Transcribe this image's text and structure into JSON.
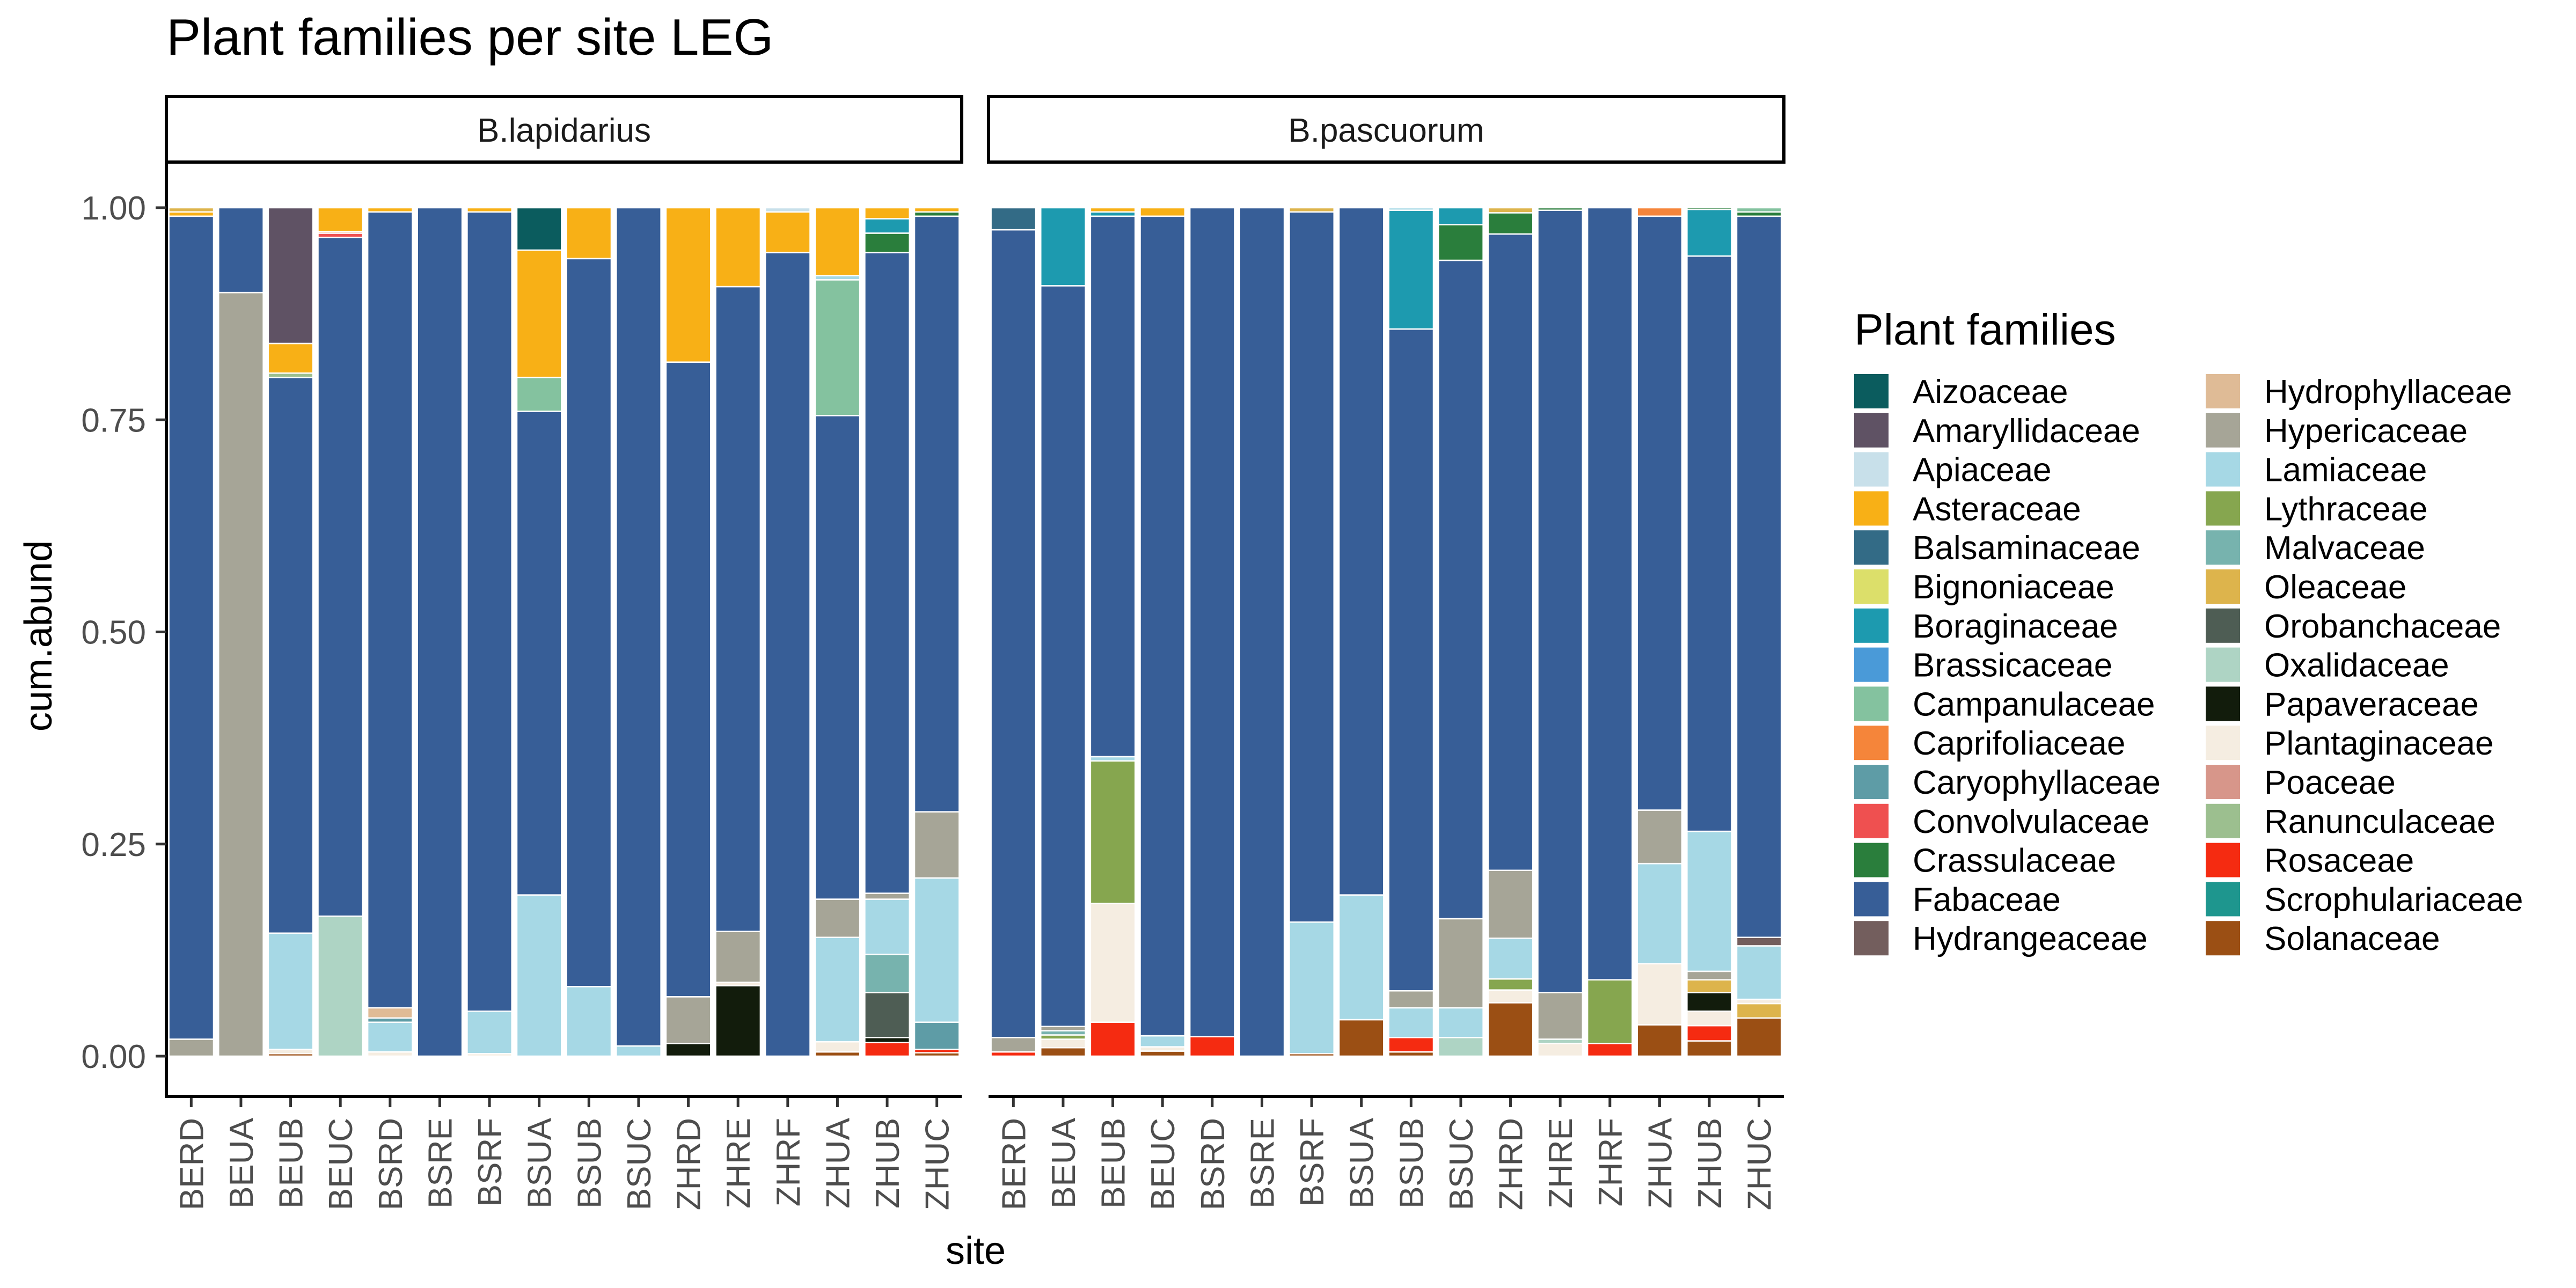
{
  "chart_data": {
    "type": "bar",
    "title": "Plant families per site LEG",
    "xlabel": "site",
    "ylabel": "cum.abund",
    "ylim": [
      0,
      1.05
    ],
    "yticks": [
      0,
      0.25,
      0.5,
      0.75,
      1.0
    ],
    "ytick_labels": [
      "0.00",
      "0.25",
      "0.50",
      "0.75",
      "1.00"
    ],
    "legend_title": "Plant families",
    "legend_position": "right",
    "categories": [
      "BERD",
      "BEUA",
      "BEUB",
      "BEUC",
      "BSRD",
      "BSRE",
      "BSRF",
      "BSUA",
      "BSUB",
      "BSUC",
      "ZHRD",
      "ZHRE",
      "ZHRF",
      "ZHUA",
      "ZHUB",
      "ZHUC"
    ],
    "families": [
      {
        "name": "Aizoaceae",
        "color": "#0B5C5E"
      },
      {
        "name": "Amaryllidaceae",
        "color": "#5F5264"
      },
      {
        "name": "Apiaceae",
        "color": "#C8E0EA"
      },
      {
        "name": "Asteraceae",
        "color": "#F8B016"
      },
      {
        "name": "Balsaminaceae",
        "color": "#336B86"
      },
      {
        "name": "Bignoniaceae",
        "color": "#DCDF6A"
      },
      {
        "name": "Boraginaceae",
        "color": "#1D9AAF"
      },
      {
        "name": "Brassicaceae",
        "color": "#4A9AD8"
      },
      {
        "name": "Campanulaceae",
        "color": "#84C29F"
      },
      {
        "name": "Caprifoliaceae",
        "color": "#F5853A"
      },
      {
        "name": "Caryophyllaceae",
        "color": "#5E9CA6"
      },
      {
        "name": "Convolvulaceae",
        "color": "#EF5050"
      },
      {
        "name": "Crassulaceae",
        "color": "#2A7E3C"
      },
      {
        "name": "Fabaceae",
        "color": "#375E97"
      },
      {
        "name": "Hydrangeaceae",
        "color": "#735E5D"
      },
      {
        "name": "Hydrophyllaceae",
        "color": "#DFBB96"
      },
      {
        "name": "Hypericaceae",
        "color": "#A6A597"
      },
      {
        "name": "Lamiaceae",
        "color": "#A6D8E5"
      },
      {
        "name": "Lythraceae",
        "color": "#86A64F"
      },
      {
        "name": "Malvaceae",
        "color": "#77B3AE"
      },
      {
        "name": "Oleaceae",
        "color": "#DDB44C"
      },
      {
        "name": "Orobanchaceae",
        "color": "#4E5D54"
      },
      {
        "name": "Oxalidaceae",
        "color": "#AED4C4"
      },
      {
        "name": "Papaveraceae",
        "color": "#121C0C"
      },
      {
        "name": "Plantaginaceae",
        "color": "#F5EDE1"
      },
      {
        "name": "Poaceae",
        "color": "#D7968A"
      },
      {
        "name": "Ranunculaceae",
        "color": "#9CBF8F"
      },
      {
        "name": "Rosaceae",
        "color": "#F52B11"
      },
      {
        "name": "Scrophulariaceae",
        "color": "#1E968E"
      },
      {
        "name": "Solanaceae",
        "color": "#9B4F14"
      }
    ],
    "panels": [
      {
        "label": "B.lapidarius",
        "bars": [
          {
            "site": "BERD",
            "segments": [
              [
                "Hypericaceae",
                0.02
              ],
              [
                "Fabaceae",
                0.97
              ],
              [
                "Asteraceae",
                0.005
              ],
              [
                "Oleaceae",
                0.005
              ]
            ]
          },
          {
            "site": "BEUA",
            "segments": [
              [
                "Hypericaceae",
                0.9
              ],
              [
                "Fabaceae",
                0.1
              ]
            ]
          },
          {
            "site": "BEUB",
            "segments": [
              [
                "Solanaceae",
                0.003
              ],
              [
                "Plantaginaceae",
                0.005
              ],
              [
                "Lamiaceae",
                0.137
              ],
              [
                "Fabaceae",
                0.655
              ],
              [
                "Ranunculaceae",
                0.005
              ],
              [
                "Asteraceae",
                0.035
              ],
              [
                "Amaryllidaceae",
                0.16
              ]
            ]
          },
          {
            "site": "BEUC",
            "segments": [
              [
                "Oxalidaceae",
                0.165
              ],
              [
                "Fabaceae",
                0.8
              ],
              [
                "Convolvulaceae",
                0.005
              ],
              [
                "Caprifoliaceae",
                0.002
              ],
              [
                "Asteraceae",
                0.028
              ]
            ]
          },
          {
            "site": "BSRD",
            "segments": [
              [
                "Plantaginaceae",
                0.005
              ],
              [
                "Lamiaceae",
                0.035
              ],
              [
                "Caryophyllaceae",
                0.005
              ],
              [
                "Hydrophyllaceae",
                0.012
              ],
              [
                "Fabaceae",
                0.938
              ],
              [
                "Asteraceae",
                0.005
              ]
            ]
          },
          {
            "site": "BSRE",
            "segments": [
              [
                "Fabaceae",
                1.0
              ]
            ]
          },
          {
            "site": "BSRF",
            "segments": [
              [
                "Plantaginaceae",
                0.003
              ],
              [
                "Lamiaceae",
                0.05
              ],
              [
                "Fabaceae",
                0.942
              ],
              [
                "Asteraceae",
                0.005
              ]
            ]
          },
          {
            "site": "BSUA",
            "segments": [
              [
                "Lamiaceae",
                0.19
              ],
              [
                "Fabaceae",
                0.57
              ],
              [
                "Campanulaceae",
                0.04
              ],
              [
                "Asteraceae",
                0.15
              ],
              [
                "Aizoaceae",
                0.05
              ]
            ]
          },
          {
            "site": "BSUB",
            "segments": [
              [
                "Lamiaceae",
                0.082
              ],
              [
                "Fabaceae",
                0.858
              ],
              [
                "Asteraceae",
                0.06
              ]
            ]
          },
          {
            "site": "BSUC",
            "segments": [
              [
                "Lamiaceae",
                0.012
              ],
              [
                "Fabaceae",
                0.988
              ]
            ]
          },
          {
            "site": "ZHRD",
            "segments": [
              [
                "Papaveraceae",
                0.015
              ],
              [
                "Hypericaceae",
                0.055
              ],
              [
                "Fabaceae",
                0.748
              ],
              [
                "Asteraceae",
                0.182
              ]
            ]
          },
          {
            "site": "ZHRE",
            "segments": [
              [
                "Papaveraceae",
                0.083
              ],
              [
                "Plantaginaceae",
                0.004
              ],
              [
                "Hypericaceae",
                0.06
              ],
              [
                "Fabaceae",
                0.76
              ],
              [
                "Asteraceae",
                0.093
              ]
            ]
          },
          {
            "site": "ZHRF",
            "segments": [
              [
                "Fabaceae",
                0.947
              ],
              [
                "Asteraceae",
                0.048
              ],
              [
                "Apiaceae",
                0.005
              ]
            ]
          },
          {
            "site": "ZHUA",
            "segments": [
              [
                "Solanaceae",
                0.005
              ],
              [
                "Plantaginaceae",
                0.012
              ],
              [
                "Lamiaceae",
                0.123
              ],
              [
                "Hypericaceae",
                0.045
              ],
              [
                "Fabaceae",
                0.57
              ],
              [
                "Campanulaceae",
                0.16
              ],
              [
                "Lamiaceae",
                0.005
              ],
              [
                "Asteraceae",
                0.08
              ]
            ]
          },
          {
            "site": "ZHUB",
            "segments": [
              [
                "Rosaceae",
                0.016
              ],
              [
                "Papaveraceae",
                0.006
              ],
              [
                "Orobanchaceae",
                0.053
              ],
              [
                "Malvaceae",
                0.045
              ],
              [
                "Lamiaceae",
                0.065
              ],
              [
                "Hypericaceae",
                0.007
              ],
              [
                "Fabaceae",
                0.755
              ],
              [
                "Crassulaceae",
                0.023
              ],
              [
                "Boraginaceae",
                0.017
              ],
              [
                "Asteraceae",
                0.013
              ]
            ]
          },
          {
            "site": "ZHUC",
            "segments": [
              [
                "Solanaceae",
                0.004
              ],
              [
                "Rosaceae",
                0.004
              ],
              [
                "Caryophyllaceae",
                0.032
              ],
              [
                "Lamiaceae",
                0.17
              ],
              [
                "Hypericaceae",
                0.078
              ],
              [
                "Fabaceae",
                0.702
              ],
              [
                "Crassulaceae",
                0.005
              ],
              [
                "Asteraceae",
                0.005
              ]
            ]
          }
        ]
      },
      {
        "label": "B.pascuorum",
        "bars": [
          {
            "site": "BERD",
            "segments": [
              [
                "Rosaceae",
                0.005
              ],
              [
                "Hypericaceae",
                0.017
              ],
              [
                "Fabaceae",
                0.952
              ],
              [
                "Balsaminaceae",
                0.026
              ]
            ]
          },
          {
            "site": "BEUA",
            "segments": [
              [
                "Solanaceae",
                0.01
              ],
              [
                "Plantaginaceae",
                0.01
              ],
              [
                "Lythraceae",
                0.005
              ],
              [
                "Malvaceae",
                0.005
              ],
              [
                "Hypericaceae",
                0.005
              ],
              [
                "Fabaceae",
                0.873
              ],
              [
                "Boraginaceae",
                0.092
              ]
            ]
          },
          {
            "site": "BEUB",
            "segments": [
              [
                "Rosaceae",
                0.04
              ],
              [
                "Plantaginaceae",
                0.14
              ],
              [
                "Lythraceae",
                0.168
              ],
              [
                "Lamiaceae",
                0.005
              ],
              [
                "Fabaceae",
                0.637
              ],
              [
                "Boraginaceae",
                0.005
              ],
              [
                "Asteraceae",
                0.005
              ]
            ]
          },
          {
            "site": "BEUC",
            "segments": [
              [
                "Solanaceae",
                0.006
              ],
              [
                "Plantaginaceae",
                0.005
              ],
              [
                "Lamiaceae",
                0.013
              ],
              [
                "Fabaceae",
                0.966
              ],
              [
                "Asteraceae",
                0.01
              ]
            ]
          },
          {
            "site": "BSRD",
            "segments": [
              [
                "Rosaceae",
                0.023
              ],
              [
                "Fabaceae",
                0.977
              ]
            ]
          },
          {
            "site": "BSRE",
            "segments": [
              [
                "Fabaceae",
                1.0
              ]
            ]
          },
          {
            "site": "BSRF",
            "segments": [
              [
                "Solanaceae",
                0.003
              ],
              [
                "Lamiaceae",
                0.155
              ],
              [
                "Fabaceae",
                0.837
              ],
              [
                "Oleaceae",
                0.005
              ]
            ]
          },
          {
            "site": "BSUA",
            "segments": [
              [
                "Solanaceae",
                0.043
              ],
              [
                "Lamiaceae",
                0.147
              ],
              [
                "Fabaceae",
                0.81
              ]
            ]
          },
          {
            "site": "BSUB",
            "segments": [
              [
                "Solanaceae",
                0.005
              ],
              [
                "Rosaceae",
                0.017
              ],
              [
                "Lamiaceae",
                0.035
              ],
              [
                "Hypericaceae",
                0.02
              ],
              [
                "Fabaceae",
                0.78
              ],
              [
                "Boraginaceae",
                0.14
              ],
              [
                "Lamiaceae",
                0.003
              ]
            ]
          },
          {
            "site": "BSUC",
            "segments": [
              [
                "Oxalidaceae",
                0.022
              ],
              [
                "Lamiaceae",
                0.035
              ],
              [
                "Hypericaceae",
                0.105
              ],
              [
                "Fabaceae",
                0.776
              ],
              [
                "Crassulaceae",
                0.042
              ],
              [
                "Boraginaceae",
                0.02
              ]
            ]
          },
          {
            "site": "ZHRD",
            "segments": [
              [
                "Solanaceae",
                0.063
              ],
              [
                "Plantaginaceae",
                0.015
              ],
              [
                "Lythraceae",
                0.013
              ],
              [
                "Lamiaceae",
                0.048
              ],
              [
                "Hypericaceae",
                0.08
              ],
              [
                "Fabaceae",
                0.75
              ],
              [
                "Crassulaceae",
                0.025
              ],
              [
                "Oleaceae",
                0.006
              ]
            ]
          },
          {
            "site": "ZHRE",
            "segments": [
              [
                "Plantaginaceae",
                0.015
              ],
              [
                "Oxalidaceae",
                0.005
              ],
              [
                "Hypericaceae",
                0.055
              ],
              [
                "Fabaceae",
                0.922
              ],
              [
                "Crassulaceae",
                0.003
              ]
            ]
          },
          {
            "site": "ZHRF",
            "segments": [
              [
                "Rosaceae",
                0.015
              ],
              [
                "Lythraceae",
                0.075
              ],
              [
                "Fabaceae",
                0.91
              ]
            ]
          },
          {
            "site": "ZHUA",
            "segments": [
              [
                "Solanaceae",
                0.037
              ],
              [
                "Plantaginaceae",
                0.072
              ],
              [
                "Lamiaceae",
                0.118
              ],
              [
                "Hypericaceae",
                0.063
              ],
              [
                "Fabaceae",
                0.7
              ],
              [
                "Caprifoliaceae",
                0.01
              ]
            ]
          },
          {
            "site": "ZHUB",
            "segments": [
              [
                "Solanaceae",
                0.018
              ],
              [
                "Rosaceae",
                0.018
              ],
              [
                "Plantaginaceae",
                0.017
              ],
              [
                "Papaveraceae",
                0.022
              ],
              [
                "Oleaceae",
                0.015
              ],
              [
                "Hypericaceae",
                0.01
              ],
              [
                "Lamiaceae",
                0.165
              ],
              [
                "Fabaceae",
                0.678
              ],
              [
                "Boraginaceae",
                0.055
              ],
              [
                "Crassulaceae",
                0.002
              ]
            ]
          },
          {
            "site": "ZHUC",
            "segments": [
              [
                "Solanaceae",
                0.045
              ],
              [
                "Oleaceae",
                0.017
              ],
              [
                "Plantaginaceae",
                0.005
              ],
              [
                "Lamiaceae",
                0.063
              ],
              [
                "Hydrangeaceae",
                0.01
              ],
              [
                "Fabaceae",
                0.85
              ],
              [
                "Crassulaceae",
                0.005
              ],
              [
                "Campanulaceae",
                0.005
              ]
            ]
          }
        ]
      }
    ]
  }
}
